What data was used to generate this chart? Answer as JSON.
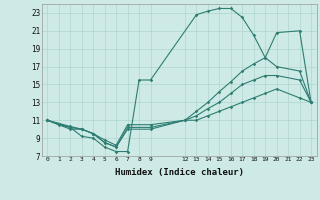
{
  "xlabel": "Humidex (Indice chaleur)",
  "line_color": "#2e7d72",
  "bg_color": "#ceeae6",
  "grid_color": "#b0d5d0",
  "xlim": [
    -0.5,
    23.5
  ],
  "ylim": [
    7,
    24
  ],
  "xticks": [
    0,
    1,
    2,
    3,
    4,
    5,
    6,
    7,
    8,
    9,
    12,
    13,
    14,
    15,
    16,
    17,
    18,
    19,
    20,
    21,
    22,
    23
  ],
  "yticks": [
    7,
    9,
    11,
    13,
    15,
    17,
    19,
    21,
    23
  ],
  "lines": [
    {
      "x": [
        0,
        1,
        2,
        3,
        4,
        5,
        6,
        7,
        8,
        9,
        13,
        14,
        15,
        16,
        17,
        18,
        19,
        20,
        22,
        23
      ],
      "y": [
        11,
        10.5,
        10.2,
        9.2,
        9.0,
        8.0,
        7.5,
        7.5,
        15.5,
        15.5,
        22.8,
        23.2,
        23.5,
        23.5,
        22.5,
        20.5,
        18.0,
        20.8,
        21.0,
        13.0
      ]
    },
    {
      "x": [
        0,
        2,
        3,
        4,
        5,
        6,
        7,
        9,
        12,
        13,
        14,
        15,
        16,
        17,
        18,
        19,
        20,
        22,
        23
      ],
      "y": [
        11,
        10.3,
        10.0,
        9.5,
        8.8,
        8.2,
        10.5,
        10.5,
        11.0,
        12.0,
        13.0,
        14.2,
        15.3,
        16.5,
        17.3,
        18.0,
        17.0,
        16.5,
        13.0
      ]
    },
    {
      "x": [
        0,
        2,
        3,
        4,
        5,
        6,
        7,
        9,
        12,
        13,
        14,
        15,
        16,
        17,
        18,
        19,
        20,
        22,
        23
      ],
      "y": [
        11,
        10.2,
        10.0,
        9.5,
        8.5,
        8.0,
        10.2,
        10.2,
        11.0,
        11.5,
        12.3,
        13.0,
        14.0,
        15.0,
        15.5,
        16.0,
        16.0,
        15.5,
        13.0
      ]
    },
    {
      "x": [
        0,
        2,
        3,
        4,
        5,
        6,
        7,
        9,
        12,
        13,
        14,
        15,
        16,
        17,
        18,
        19,
        20,
        22,
        23
      ],
      "y": [
        11,
        10.0,
        10.0,
        9.5,
        8.5,
        8.0,
        10.0,
        10.0,
        11.0,
        11.0,
        11.5,
        12.0,
        12.5,
        13.0,
        13.5,
        14.0,
        14.5,
        13.5,
        13.0
      ]
    }
  ]
}
